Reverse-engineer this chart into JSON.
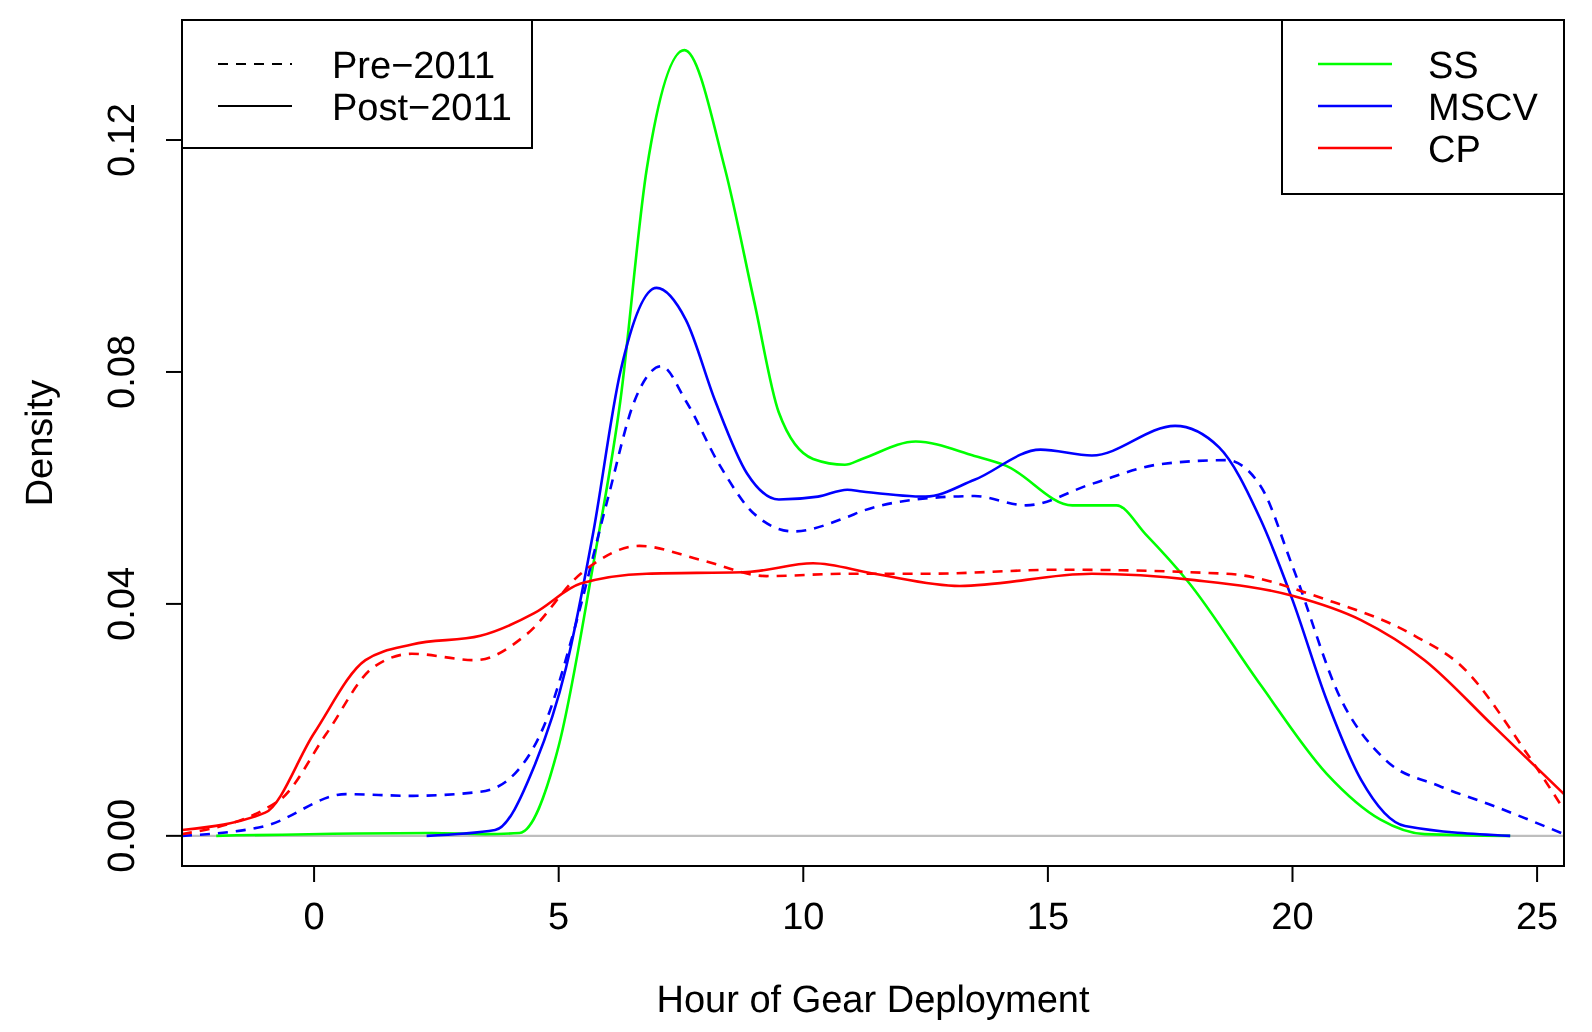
{
  "chart_data": {
    "type": "line",
    "xlabel": "Hour of Gear Deployment",
    "ylabel": "Density",
    "xlim": [
      -2.7,
      25.55
    ],
    "xticks": [
      0,
      5,
      10,
      15,
      20,
      25
    ],
    "ylim": [
      -0.0052,
      0.1407
    ],
    "yticks": [
      {
        "value": 0,
        "label": "0.00"
      },
      {
        "value": 0.04,
        "label": "0.04"
      },
      {
        "value": 0.08,
        "label": "0.08"
      },
      {
        "value": 0.12,
        "label": "0.12"
      }
    ],
    "grid": false,
    "legend": "top right",
    "marker": "none",
    "ref_lines": [
      {
        "axis": "y",
        "value": 0,
        "color": "#bebebe"
      }
    ],
    "annotations": [
      "Pre−2011",
      "Post−2011"
    ],
    "series": [
      {
        "name": "SS",
        "color": "#00ff00",
        "line_style": "solid",
        "x": [
          -2.0,
          2.4,
          3.5,
          4.2,
          5.0,
          5.7,
          6.26,
          6.8,
          7.57,
          8.4,
          9.0,
          9.5,
          10.2,
          10.85,
          11.2,
          12.3,
          13.5,
          14.15,
          15.5,
          16.4,
          17.0,
          17.85,
          19.35,
          20.7,
          21.8,
          22.7,
          24.45
        ],
        "values": [
          0,
          0.0005,
          0.0003,
          0.0005,
          0.0155,
          0.0465,
          0.075,
          0.115,
          0.1355,
          0.115,
          0.092,
          0.073,
          0.065,
          0.064,
          0.065,
          0.068,
          0.0655,
          0.0638,
          0.057,
          0.057,
          0.052,
          0.044,
          0.026,
          0.0107,
          0.0028,
          0.0003,
          0
        ]
      },
      {
        "name": "MSCV",
        "color": "#0000ff",
        "line_style": "solid",
        "x": [
          2.3,
          3.7,
          4.5,
          5.15,
          5.7,
          6.26,
          7.0,
          7.6,
          8.2,
          8.85,
          9.5,
          10.3,
          10.9,
          11.2,
          12.5,
          13.5,
          14.85,
          15.9,
          17.6,
          18.5,
          19.35,
          20.0,
          20.7,
          21.4,
          22.3,
          24.45
        ],
        "values": [
          0,
          0.001,
          0.012,
          0.029,
          0.052,
          0.08,
          0.0945,
          0.089,
          0.075,
          0.0625,
          0.058,
          0.0585,
          0.0597,
          0.0594,
          0.0585,
          0.0614,
          0.0666,
          0.0656,
          0.0707,
          0.067,
          0.0545,
          0.0407,
          0.0234,
          0.0097,
          0.0017,
          0
        ]
      },
      {
        "name": "CP",
        "color": "#ff0000",
        "line_style": "solid",
        "x": [
          -2.7,
          -1.0,
          0,
          1.05,
          2.0,
          3.4,
          4.5,
          5.45,
          6.8,
          8.85,
          10.2,
          11.45,
          13.2,
          15.9,
          18.0,
          20.0,
          21.4,
          22.7,
          24.1,
          25.55
        ],
        "values": [
          0.001,
          0.004,
          0.0177,
          0.0303,
          0.033,
          0.0345,
          0.0384,
          0.0435,
          0.0452,
          0.0455,
          0.047,
          0.0452,
          0.0431,
          0.0452,
          0.0441,
          0.0414,
          0.0372,
          0.0303,
          0.019,
          0.0072
        ]
      },
      {
        "color": "#0000ff",
        "line_style": "dashed",
        "x": [
          -2.7,
          -1.0,
          0.65,
          2.0,
          3.4,
          4.1,
          4.75,
          5.3,
          6.0,
          6.55,
          7.1,
          7.6,
          8.3,
          9.0,
          9.8,
          10.9,
          11.2,
          12.3,
          13.5,
          14.55,
          15.9,
          17.3,
          18.65,
          19.35,
          20.0,
          21.0,
          21.9,
          23.0,
          24.1,
          25.55
        ],
        "values": [
          0,
          0.0017,
          0.0072,
          0.0069,
          0.0076,
          0.0107,
          0.02,
          0.035,
          0.058,
          0.075,
          0.081,
          0.075,
          0.0638,
          0.0555,
          0.0525,
          0.055,
          0.056,
          0.058,
          0.0586,
          0.057,
          0.0607,
          0.0641,
          0.0648,
          0.0603,
          0.0465,
          0.0234,
          0.0131,
          0.0086,
          0.0052,
          0.0003
        ]
      },
      {
        "color": "#ff0000",
        "line_style": "dashed",
        "x": [
          -2.7,
          -0.7,
          0.25,
          1.2,
          2.0,
          3.3,
          4.35,
          5.45,
          6.65,
          7.9,
          9.25,
          10.9,
          12.5,
          15.25,
          18.65,
          20.7,
          22.5,
          23.45,
          24.8,
          25.55
        ],
        "values": [
          0.0003,
          0.0062,
          0.0176,
          0.029,
          0.0314,
          0.0303,
          0.0348,
          0.0452,
          0.05,
          0.0476,
          0.0448,
          0.0452,
          0.0452,
          0.0459,
          0.0452,
          0.0407,
          0.0345,
          0.0293,
          0.0141,
          0.0045
        ]
      }
    ]
  }
}
